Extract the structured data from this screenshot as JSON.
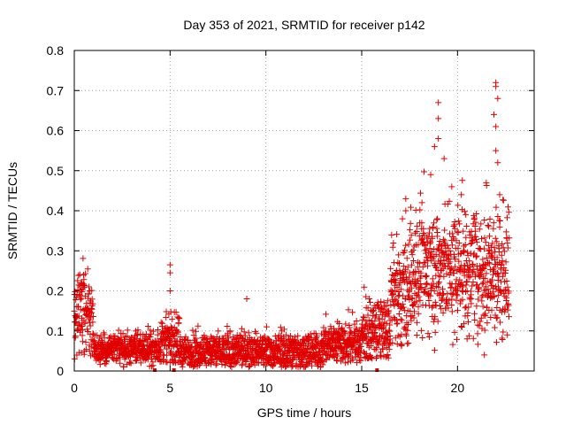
{
  "chart_data": {
    "type": "scatter",
    "title": "Day 353 of 2021, SRMTID for receiver p142",
    "xlabel": "GPS time / hours",
    "ylabel": "SRMTID / TECUs",
    "xlim": [
      0,
      24
    ],
    "ylim": [
      0,
      0.8
    ],
    "x_ticks": [
      0,
      5,
      10,
      15,
      20
    ],
    "x_tick_labels": [
      "0",
      "5",
      "10",
      "15",
      "20"
    ],
    "y_ticks": [
      0,
      0.1,
      0.2,
      0.3,
      0.4,
      0.5,
      0.6,
      0.7,
      0.8
    ],
    "y_tick_labels": [
      "0",
      "0.1",
      "0.2",
      "0.3",
      "0.4",
      "0.5",
      "0.6",
      "0.7",
      "0.8"
    ],
    "grid": true,
    "marker": "+",
    "color": "#e00000",
    "x_axis_markers": [
      4.2,
      5.2,
      15.8
    ],
    "series": [
      {
        "name": "SRMTID",
        "segments": [
          {
            "t0": 0.0,
            "t1": 1.0,
            "mean": 0.14,
            "spread": 0.08,
            "min": 0.03
          },
          {
            "t0": 1.0,
            "t1": 4.5,
            "mean": 0.055,
            "spread": 0.03,
            "min": 0.01
          },
          {
            "t0": 4.5,
            "t1": 5.5,
            "mean": 0.07,
            "spread": 0.05,
            "min": 0.02
          },
          {
            "t0": 5.5,
            "t1": 13.0,
            "mean": 0.05,
            "spread": 0.035,
            "min": 0.01
          },
          {
            "t0": 13.0,
            "t1": 15.0,
            "mean": 0.07,
            "spread": 0.04,
            "min": 0.02
          },
          {
            "t0": 15.0,
            "t1": 16.5,
            "mean": 0.1,
            "spread": 0.06,
            "min": 0.03
          },
          {
            "t0": 16.5,
            "t1": 17.5,
            "mean": 0.18,
            "spread": 0.1,
            "min": 0.06
          },
          {
            "t0": 17.5,
            "t1": 22.7,
            "mean": 0.25,
            "spread": 0.12,
            "min": 0.04
          }
        ],
        "peaks": [
          {
            "x": 0.4,
            "y": 0.22
          },
          {
            "x": 0.8,
            "y": 0.2
          },
          {
            "x": 5.0,
            "y": 0.265
          },
          {
            "x": 5.0,
            "y": 0.245
          },
          {
            "x": 5.0,
            "y": 0.2
          },
          {
            "x": 9.0,
            "y": 0.18
          },
          {
            "x": 17.3,
            "y": 0.43
          },
          {
            "x": 17.3,
            "y": 0.4
          },
          {
            "x": 18.6,
            "y": 0.49
          },
          {
            "x": 18.8,
            "y": 0.56
          },
          {
            "x": 19.0,
            "y": 0.67
          },
          {
            "x": 19.0,
            "y": 0.63
          },
          {
            "x": 19.0,
            "y": 0.58
          },
          {
            "x": 19.3,
            "y": 0.53
          },
          {
            "x": 19.7,
            "y": 0.46
          },
          {
            "x": 20.2,
            "y": 0.44
          },
          {
            "x": 21.5,
            "y": 0.47
          },
          {
            "x": 22.0,
            "y": 0.72
          },
          {
            "x": 22.0,
            "y": 0.71
          },
          {
            "x": 22.1,
            "y": 0.68
          },
          {
            "x": 21.9,
            "y": 0.64
          },
          {
            "x": 22.0,
            "y": 0.61
          },
          {
            "x": 22.0,
            "y": 0.55
          },
          {
            "x": 22.1,
            "y": 0.52
          },
          {
            "x": 22.2,
            "y": 0.44
          },
          {
            "x": 20.5,
            "y": 0.08
          },
          {
            "x": 21.4,
            "y": 0.04
          },
          {
            "x": 22.6,
            "y": 0.09
          }
        ]
      }
    ]
  }
}
